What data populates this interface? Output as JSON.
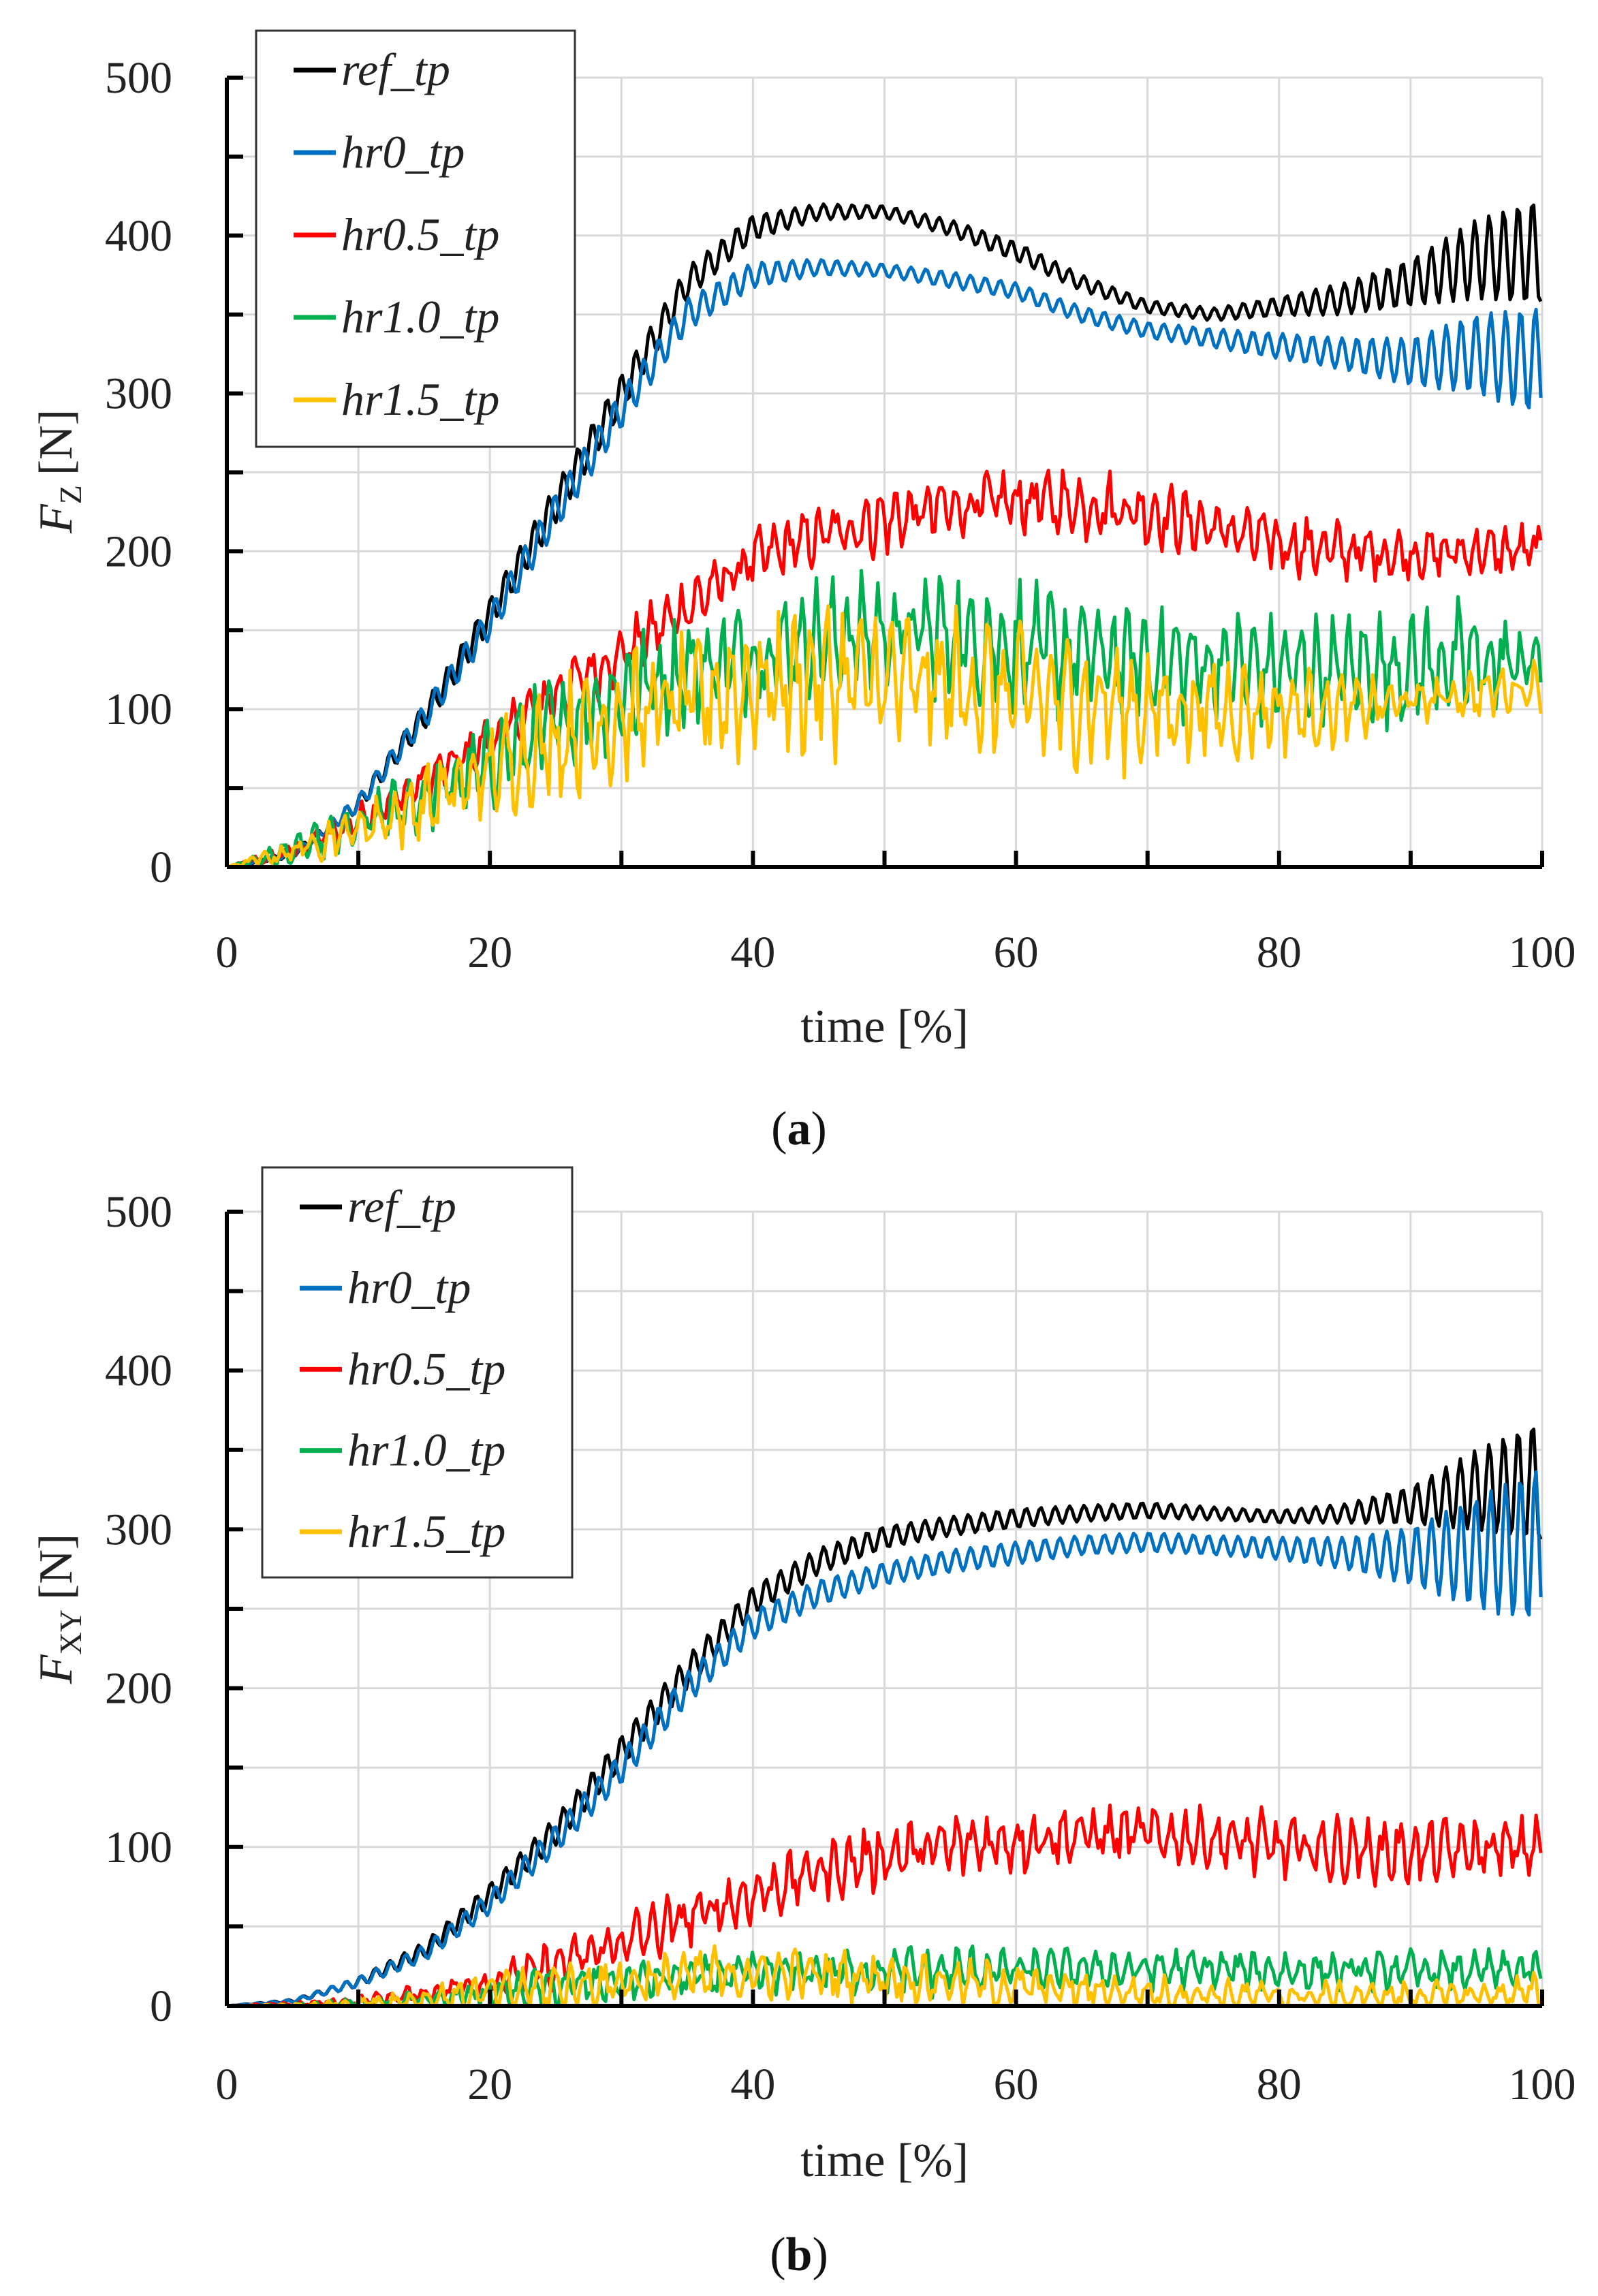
{
  "colors": {
    "ref_tp": "#000000",
    "hr0_tp": "#0070c0",
    "hr0.5_tp": "#ff0000",
    "hr1.0_tp": "#00b050",
    "hr1.5_tp": "#ffc000"
  },
  "chart_data": [
    {
      "type": "line",
      "panel_label": "(a)",
      "panel_letter": "a",
      "ylabel_symbol": "F",
      "ylabel_sub": "Z",
      "ylabel_unit": "[N]",
      "xlabel": "time [%]",
      "xlim": [
        0,
        100
      ],
      "ylim": [
        0,
        500
      ],
      "xticks": [
        "0",
        "20",
        "40",
        "60",
        "80",
        "100"
      ],
      "yticks": [
        "0",
        "100",
        "200",
        "300",
        "400",
        "500"
      ],
      "grid": true,
      "legend_position": "top-left",
      "x": [
        0,
        5,
        10,
        15,
        20,
        25,
        30,
        35,
        40,
        45,
        50,
        55,
        60,
        65,
        70,
        75,
        80,
        85,
        90,
        95,
        100
      ],
      "series": [
        {
          "name": "ref_tp",
          "values": [
            0,
            8,
            40,
            95,
            160,
            230,
            300,
            370,
            405,
            415,
            415,
            405,
            390,
            370,
            355,
            350,
            355,
            360,
            370,
            385,
            390
          ],
          "oscillation": [
            0,
            2,
            5,
            8,
            10,
            12,
            12,
            10,
            8,
            5,
            4,
            5,
            6,
            5,
            4,
            4,
            6,
            10,
            15,
            25,
            35
          ]
        },
        {
          "name": "hr0_tp",
          "values": [
            0,
            8,
            40,
            95,
            155,
            225,
            290,
            350,
            375,
            380,
            378,
            372,
            365,
            350,
            340,
            335,
            330,
            325,
            320,
            325,
            320
          ],
          "oscillation": [
            0,
            2,
            5,
            8,
            10,
            12,
            12,
            10,
            8,
            5,
            4,
            5,
            5,
            5,
            5,
            6,
            8,
            10,
            15,
            25,
            35
          ]
        },
        {
          "name": "hr0.5_tp",
          "values": [
            0,
            10,
            30,
            55,
            80,
            110,
            135,
            165,
            195,
            210,
            220,
            228,
            232,
            230,
            225,
            215,
            205,
            200,
            198,
            200,
            200
          ],
          "oscillation": [
            0,
            4,
            6,
            8,
            10,
            12,
            12,
            12,
            12,
            12,
            14,
            14,
            14,
            14,
            14,
            12,
            12,
            12,
            10,
            10,
            12
          ]
        },
        {
          "name": "hr1.0_tp",
          "values": [
            0,
            10,
            25,
            45,
            65,
            90,
            110,
            125,
            135,
            145,
            150,
            148,
            140,
            135,
            130,
            128,
            125,
            125,
            128,
            130,
            130
          ],
          "oscillation": [
            0,
            6,
            10,
            14,
            18,
            20,
            22,
            22,
            22,
            24,
            25,
            28,
            28,
            25,
            24,
            22,
            22,
            22,
            24,
            24,
            22
          ]
        },
        {
          "name": "hr1.5_tp",
          "values": [
            0,
            10,
            25,
            40,
            60,
            80,
            95,
            105,
            115,
            120,
            118,
            115,
            110,
            105,
            100,
            100,
            100,
            100,
            105,
            110,
            115
          ],
          "oscillation": [
            0,
            6,
            10,
            16,
            20,
            24,
            26,
            28,
            30,
            30,
            30,
            30,
            28,
            26,
            25,
            22,
            18,
            14,
            10,
            10,
            10
          ]
        }
      ]
    },
    {
      "type": "line",
      "panel_label": "(b)",
      "panel_letter": "b",
      "ylabel_symbol": "F",
      "ylabel_sub": "XY",
      "ylabel_unit": "[N]",
      "xlabel": "time [%]",
      "xlim": [
        0,
        100
      ],
      "ylim": [
        0,
        500
      ],
      "xticks": [
        "0",
        "20",
        "40",
        "60",
        "80",
        "100"
      ],
      "yticks": [
        "0",
        "100",
        "200",
        "300",
        "400",
        "500"
      ],
      "grid": true,
      "legend_position": "top-left",
      "x": [
        0,
        5,
        10,
        15,
        20,
        25,
        30,
        35,
        40,
        45,
        50,
        55,
        60,
        65,
        70,
        75,
        80,
        85,
        90,
        95,
        100
      ],
      "series": [
        {
          "name": "ref_tp",
          "values": [
            0,
            3,
            15,
            35,
            70,
            110,
            160,
            210,
            255,
            280,
            295,
            302,
            307,
            310,
            312,
            310,
            308,
            310,
            315,
            325,
            330
          ],
          "oscillation": [
            0,
            1,
            3,
            5,
            7,
            9,
            10,
            10,
            9,
            8,
            7,
            6,
            6,
            5,
            5,
            4,
            4,
            6,
            12,
            25,
            40
          ]
        },
        {
          "name": "hr0_tp",
          "values": [
            0,
            3,
            15,
            33,
            65,
            105,
            150,
            200,
            240,
            260,
            272,
            280,
            285,
            290,
            292,
            290,
            288,
            285,
            283,
            285,
            290
          ],
          "oscillation": [
            0,
            1,
            3,
            5,
            7,
            9,
            10,
            10,
            9,
            8,
            7,
            7,
            7,
            6,
            6,
            6,
            7,
            10,
            18,
            35,
            50
          ]
        },
        {
          "name": "hr0.5_tp",
          "values": [
            0,
            1,
            3,
            8,
            15,
            25,
            40,
            55,
            70,
            85,
            95,
            100,
            105,
            108,
            108,
            105,
            100,
            98,
            97,
            98,
            100
          ],
          "oscillation": [
            0,
            1,
            2,
            4,
            6,
            10,
            12,
            12,
            12,
            12,
            14,
            14,
            14,
            12,
            12,
            12,
            14,
            14,
            14,
            12,
            12
          ]
        },
        {
          "name": "hr1.0_tp",
          "values": [
            0,
            0,
            2,
            4,
            8,
            12,
            15,
            18,
            20,
            22,
            22,
            22,
            23,
            23,
            23,
            23,
            22,
            22,
            22,
            22,
            22
          ],
          "oscillation": [
            0,
            1,
            2,
            4,
            6,
            8,
            8,
            8,
            8,
            8,
            10,
            10,
            8,
            8,
            8,
            8,
            8,
            8,
            8,
            8,
            8
          ]
        },
        {
          "name": "hr1.5_tp",
          "values": [
            0,
            0,
            2,
            4,
            8,
            12,
            15,
            18,
            20,
            20,
            18,
            15,
            12,
            10,
            8,
            7,
            6,
            6,
            6,
            7,
            8
          ],
          "oscillation": [
            0,
            1,
            3,
            5,
            8,
            10,
            10,
            12,
            10,
            10,
            10,
            10,
            9,
            8,
            7,
            6,
            6,
            6,
            6,
            6,
            8
          ]
        }
      ]
    }
  ]
}
